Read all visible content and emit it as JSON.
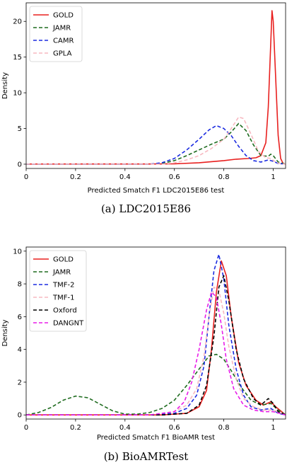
{
  "chart_data": [
    {
      "type": "line",
      "caption": "(a) LDC2015E86",
      "xlabel": "Predicted Smatch F1 LDC2015E86 test",
      "ylabel": "Density",
      "xlim": [
        0.0,
        1.05
      ],
      "ylim": [
        -0.6,
        22.6
      ],
      "xticks": [
        0.0,
        0.2,
        0.4,
        0.6,
        0.8,
        1.0
      ],
      "yticks": [
        0,
        5,
        10,
        15,
        20
      ],
      "legend_position": "top-left",
      "series": [
        {
          "name": "GOLD",
          "color": "#e8201f",
          "dash": "solid",
          "points": [
            [
              0.0,
              0.02
            ],
            [
              0.5,
              0.03
            ],
            [
              0.6,
              0.05
            ],
            [
              0.7,
              0.2
            ],
            [
              0.8,
              0.5
            ],
            [
              0.85,
              0.7
            ],
            [
              0.9,
              0.8
            ],
            [
              0.93,
              0.9
            ],
            [
              0.95,
              1.2
            ],
            [
              0.97,
              3.0
            ],
            [
              0.98,
              8.0
            ],
            [
              0.99,
              17.0
            ],
            [
              0.995,
              21.5
            ],
            [
              1.0,
              20.0
            ],
            [
              1.01,
              12.0
            ],
            [
              1.02,
              4.0
            ],
            [
              1.03,
              0.8
            ],
            [
              1.04,
              0.1
            ],
            [
              1.05,
              0.0
            ]
          ]
        },
        {
          "name": "JAMR",
          "color": "#1e6b1e",
          "dash": "dashed",
          "points": [
            [
              0.0,
              0.0
            ],
            [
              0.5,
              0.0
            ],
            [
              0.55,
              0.1
            ],
            [
              0.6,
              0.5
            ],
            [
              0.65,
              1.2
            ],
            [
              0.7,
              2.0
            ],
            [
              0.75,
              2.8
            ],
            [
              0.8,
              3.5
            ],
            [
              0.83,
              4.5
            ],
            [
              0.86,
              5.7
            ],
            [
              0.89,
              4.7
            ],
            [
              0.92,
              2.7
            ],
            [
              0.95,
              1.2
            ],
            [
              0.98,
              1.1
            ],
            [
              0.99,
              1.4
            ],
            [
              1.0,
              1.2
            ],
            [
              1.02,
              0.3
            ],
            [
              1.05,
              0.0
            ]
          ]
        },
        {
          "name": "CAMR",
          "color": "#1b2be0",
          "dash": "dashed",
          "points": [
            [
              0.0,
              0.0
            ],
            [
              0.5,
              0.0
            ],
            [
              0.55,
              0.2
            ],
            [
              0.6,
              0.8
            ],
            [
              0.65,
              2.0
            ],
            [
              0.7,
              3.5
            ],
            [
              0.74,
              4.8
            ],
            [
              0.77,
              5.4
            ],
            [
              0.8,
              5.0
            ],
            [
              0.83,
              4.0
            ],
            [
              0.86,
              2.5
            ],
            [
              0.89,
              1.2
            ],
            [
              0.92,
              0.5
            ],
            [
              0.95,
              0.3
            ],
            [
              0.98,
              0.6
            ],
            [
              1.0,
              0.4
            ],
            [
              1.02,
              0.1
            ],
            [
              1.05,
              0.0
            ]
          ]
        },
        {
          "name": "GPLA",
          "color": "#f7b8c0",
          "dash": "dashed",
          "points": [
            [
              0.0,
              0.0
            ],
            [
              0.55,
              0.0
            ],
            [
              0.6,
              0.2
            ],
            [
              0.65,
              0.6
            ],
            [
              0.7,
              1.2
            ],
            [
              0.75,
              2.2
            ],
            [
              0.8,
              3.5
            ],
            [
              0.83,
              5.0
            ],
            [
              0.86,
              6.6
            ],
            [
              0.88,
              6.4
            ],
            [
              0.91,
              4.2
            ],
            [
              0.94,
              1.8
            ],
            [
              0.97,
              0.9
            ],
            [
              0.99,
              0.8
            ],
            [
              1.01,
              0.3
            ],
            [
              1.03,
              0.05
            ],
            [
              1.05,
              0.0
            ]
          ]
        }
      ]
    },
    {
      "type": "line",
      "caption": "(b) BioAMRTest",
      "xlabel": "Predicted Smatch F1 BioAMR test",
      "ylabel": "Density",
      "xlim": [
        0.0,
        1.05
      ],
      "ylim": [
        -0.25,
        10.25
      ],
      "xticks": [
        0.0,
        0.2,
        0.4,
        0.6,
        0.8,
        1.0
      ],
      "yticks": [
        0,
        2,
        4,
        6,
        8,
        10
      ],
      "legend_position": "top-left",
      "series": [
        {
          "name": "GOLD",
          "color": "#e8201f",
          "dash": "solid",
          "points": [
            [
              0.0,
              0.0
            ],
            [
              0.55,
              0.0
            ],
            [
              0.65,
              0.1
            ],
            [
              0.7,
              0.5
            ],
            [
              0.73,
              1.5
            ],
            [
              0.75,
              4.0
            ],
            [
              0.77,
              7.5
            ],
            [
              0.79,
              9.4
            ],
            [
              0.81,
              8.5
            ],
            [
              0.83,
              6.0
            ],
            [
              0.86,
              3.2
            ],
            [
              0.89,
              1.8
            ],
            [
              0.93,
              0.9
            ],
            [
              0.96,
              0.6
            ],
            [
              0.99,
              0.8
            ],
            [
              1.01,
              0.5
            ],
            [
              1.05,
              0.0
            ]
          ]
        },
        {
          "name": "JAMR",
          "color": "#1e6b1e",
          "dash": "dashed",
          "points": [
            [
              0.0,
              0.0
            ],
            [
              0.05,
              0.15
            ],
            [
              0.1,
              0.45
            ],
            [
              0.15,
              0.9
            ],
            [
              0.2,
              1.15
            ],
            [
              0.25,
              1.05
            ],
            [
              0.3,
              0.65
            ],
            [
              0.35,
              0.25
            ],
            [
              0.4,
              0.05
            ],
            [
              0.45,
              0.05
            ],
            [
              0.5,
              0.15
            ],
            [
              0.55,
              0.4
            ],
            [
              0.6,
              0.9
            ],
            [
              0.65,
              1.8
            ],
            [
              0.7,
              2.8
            ],
            [
              0.74,
              3.6
            ],
            [
              0.77,
              3.7
            ],
            [
              0.8,
              3.4
            ],
            [
              0.83,
              2.7
            ],
            [
              0.87,
              1.7
            ],
            [
              0.91,
              0.9
            ],
            [
              0.95,
              0.6
            ],
            [
              0.99,
              0.7
            ],
            [
              1.02,
              0.3
            ],
            [
              1.05,
              0.0
            ]
          ]
        },
        {
          "name": "TMF-2",
          "color": "#1b2be0",
          "dash": "dashed",
          "points": [
            [
              0.0,
              0.0
            ],
            [
              0.5,
              0.0
            ],
            [
              0.6,
              0.1
            ],
            [
              0.65,
              0.4
            ],
            [
              0.69,
              1.2
            ],
            [
              0.72,
              3.0
            ],
            [
              0.74,
              6.0
            ],
            [
              0.76,
              8.8
            ],
            [
              0.78,
              9.8
            ],
            [
              0.8,
              8.3
            ],
            [
              0.82,
              5.5
            ],
            [
              0.85,
              2.8
            ],
            [
              0.88,
              1.2
            ],
            [
              0.91,
              0.5
            ],
            [
              0.95,
              0.3
            ],
            [
              0.99,
              0.4
            ],
            [
              1.02,
              0.1
            ],
            [
              1.05,
              0.0
            ]
          ]
        },
        {
          "name": "TMF-1",
          "color": "#f7b8c0",
          "dash": "dashed",
          "points": [
            [
              0.0,
              0.0
            ],
            [
              0.5,
              0.0
            ],
            [
              0.6,
              0.2
            ],
            [
              0.65,
              0.6
            ],
            [
              0.69,
              1.6
            ],
            [
              0.72,
              3.6
            ],
            [
              0.74,
              6.0
            ],
            [
              0.76,
              7.8
            ],
            [
              0.78,
              7.6
            ],
            [
              0.8,
              6.2
            ],
            [
              0.82,
              4.2
            ],
            [
              0.85,
              2.2
            ],
            [
              0.88,
              1.0
            ],
            [
              0.92,
              0.5
            ],
            [
              0.96,
              0.3
            ],
            [
              1.0,
              0.3
            ],
            [
              1.05,
              0.0
            ]
          ]
        },
        {
          "name": "Oxford",
          "color": "#000000",
          "dash": "dashed",
          "points": [
            [
              0.0,
              0.0
            ],
            [
              0.55,
              0.0
            ],
            [
              0.65,
              0.1
            ],
            [
              0.7,
              0.6
            ],
            [
              0.73,
              1.8
            ],
            [
              0.76,
              4.8
            ],
            [
              0.78,
              7.8
            ],
            [
              0.8,
              8.5
            ],
            [
              0.82,
              7.0
            ],
            [
              0.85,
              4.0
            ],
            [
              0.88,
              2.2
            ],
            [
              0.92,
              1.0
            ],
            [
              0.95,
              0.6
            ],
            [
              0.98,
              1.0
            ],
            [
              1.0,
              0.7
            ],
            [
              1.02,
              0.2
            ],
            [
              1.05,
              0.0
            ]
          ]
        },
        {
          "name": "DANGNT",
          "color": "#e81ce8",
          "dash": "dashed",
          "points": [
            [
              0.0,
              0.0
            ],
            [
              0.5,
              0.0
            ],
            [
              0.6,
              0.2
            ],
            [
              0.64,
              0.8
            ],
            [
              0.67,
              2.0
            ],
            [
              0.7,
              4.0
            ],
            [
              0.73,
              6.4
            ],
            [
              0.75,
              7.5
            ],
            [
              0.77,
              7.2
            ],
            [
              0.79,
              5.5
            ],
            [
              0.81,
              3.4
            ],
            [
              0.84,
              1.6
            ],
            [
              0.88,
              0.6
            ],
            [
              0.92,
              0.3
            ],
            [
              0.96,
              0.2
            ],
            [
              1.0,
              0.2
            ],
            [
              1.05,
              0.0
            ]
          ]
        }
      ]
    }
  ]
}
